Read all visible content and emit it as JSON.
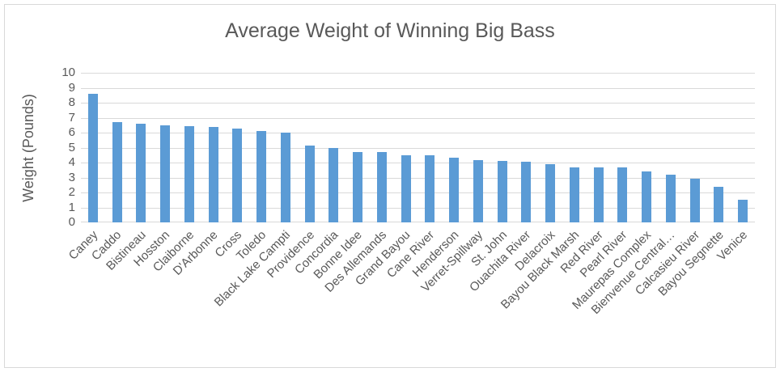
{
  "chart_data": {
    "type": "bar",
    "title": "Average Weight of Winning Big Bass",
    "ylabel": "Weight (Pounds)",
    "xlabel": "",
    "categories": [
      "Caney",
      "Caddo",
      "Bistineau",
      "Hosston",
      "Claiborne",
      "D'Arbonne",
      "Cross",
      "Toledo",
      "Black Lake Campti",
      "Providence",
      "Concordia",
      "Bonne Idee",
      "Des Allemands",
      "Grand Bayou",
      "Cane River",
      "Henderson",
      "Verret-Spillway",
      "St. John",
      "Ouachita River",
      "Delacroix",
      "Bayou Black Marsh",
      "Red River",
      "Pearl River",
      "Maurepas Complex",
      "Bienvenue Central…",
      "Calcasieu River",
      "Bayou Segnette",
      "Venice"
    ],
    "values": [
      8.6,
      6.7,
      6.6,
      6.5,
      6.45,
      6.4,
      6.25,
      6.1,
      6.0,
      5.15,
      5.0,
      4.7,
      4.7,
      4.5,
      4.5,
      4.3,
      4.15,
      4.1,
      4.05,
      3.9,
      3.7,
      3.7,
      3.7,
      3.4,
      3.2,
      2.9,
      2.4,
      1.5
    ],
    "ylim": [
      0,
      10
    ],
    "ytick_step": 1,
    "yticks": [
      0,
      1,
      2,
      3,
      4,
      5,
      6,
      7,
      8,
      9,
      10
    ],
    "grid": "horizontal",
    "legend": "none",
    "bar_color": "#5B9BD5",
    "gridline_color": "#D9D9D9",
    "text_color": "#595959",
    "frame_border_color": "#D9D9D9"
  }
}
